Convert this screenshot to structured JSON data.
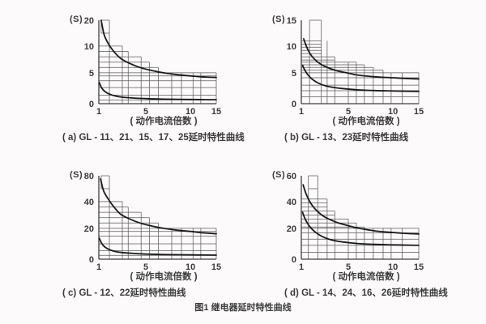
{
  "page": {
    "background": "#fdfafb",
    "figure_caption": "图1  继电器延时特性曲线"
  },
  "style": {
    "grid_color": "#5a5a5a",
    "axis_color": "#3f3f3f",
    "curve_color": "#1a1a1a",
    "text_color": "#3a3a3a"
  },
  "chart_data": [
    {
      "type": "line",
      "title": "( a) GL - 11、21、15、17、25延时特性曲线",
      "xlabel": "动作电流倍数",
      "xlabel_display": "( 动作电流倍数 )",
      "ylabel": "S",
      "ylabel_display": "(S)",
      "x_ticks": [
        1,
        5,
        10,
        15
      ],
      "y_ticks": [
        0,
        5,
        10,
        20
      ],
      "xlim": [
        1,
        15
      ],
      "ylim": [
        0,
        20
      ],
      "series": [
        {
          "name": "upper-limit-curve",
          "points": [
            [
              1.2,
              20
            ],
            [
              1.45,
              14.5
            ],
            [
              1.8,
              11
            ],
            [
              2.2,
              9.2
            ],
            [
              2.8,
              7.8
            ],
            [
              3.5,
              6.9
            ],
            [
              4.5,
              6.0
            ],
            [
              5.5,
              5.5
            ],
            [
              7,
              5.0
            ],
            [
              8.5,
              4.7
            ],
            [
              10,
              4.5
            ],
            [
              12,
              4.35
            ],
            [
              15,
              4.25
            ]
          ]
        },
        {
          "name": "lower-limit-curve",
          "points": [
            [
              1.05,
              3.4
            ],
            [
              1.25,
              2.55
            ],
            [
              1.5,
              2.0
            ],
            [
              1.9,
              1.55
            ],
            [
              2.4,
              1.25
            ],
            [
              3,
              1.05
            ],
            [
              4,
              0.9
            ],
            [
              5,
              0.82
            ],
            [
              7,
              0.74
            ],
            [
              10,
              0.68
            ],
            [
              15,
              0.64
            ]
          ]
        }
      ],
      "step_hlines": [
        [
          20,
          1.2,
          1.9
        ],
        [
          15,
          1.2,
          1.9
        ],
        [
          10,
          1,
          3.0
        ],
        [
          9,
          1,
          3.5
        ],
        [
          8,
          1,
          4.6
        ],
        [
          7,
          1,
          5.4
        ],
        [
          6,
          1,
          6.4
        ],
        [
          5,
          1,
          15
        ],
        [
          4.5,
          1,
          15
        ],
        [
          3.7,
          1,
          15
        ],
        [
          2.6,
          1,
          15
        ],
        [
          1.4,
          1,
          15
        ],
        [
          0.6,
          1,
          15
        ]
      ],
      "step_vlines": [
        [
          1.2,
          15,
          20
        ],
        [
          1.9,
          0,
          20
        ],
        [
          3.0,
          0,
          10
        ],
        [
          3.5,
          0,
          9
        ],
        [
          4.6,
          0,
          8
        ],
        [
          5.4,
          0,
          7
        ],
        [
          6.4,
          0,
          6
        ],
        [
          7.9,
          0,
          5
        ],
        [
          9,
          0,
          5
        ],
        [
          10.5,
          0,
          5
        ],
        [
          12,
          0,
          5
        ],
        [
          15,
          0,
          5
        ]
      ]
    },
    {
      "type": "line",
      "title": "( b) GL - 13、23延时特性曲线",
      "xlabel": "动作电流倍数",
      "xlabel_display": "( 动作电流倍数 )",
      "ylabel": "S",
      "ylabel_display": "(S)",
      "x_ticks": [
        1,
        5,
        10,
        15
      ],
      "y_ticks": [
        0,
        5,
        10,
        15
      ],
      "xlim": [
        1,
        15
      ],
      "ylim": [
        0,
        15
      ],
      "series": [
        {
          "name": "upper-limit-curve",
          "points": [
            [
              1.2,
              11.4
            ],
            [
              1.5,
              9.6
            ],
            [
              1.9,
              8.1
            ],
            [
              2.4,
              7.0
            ],
            [
              3,
              6.2
            ],
            [
              4,
              5.4
            ],
            [
              5,
              4.95
            ],
            [
              6,
              4.65
            ],
            [
              8,
              4.35
            ],
            [
              10,
              4.2
            ],
            [
              12,
              4.1
            ],
            [
              15,
              4.0
            ]
          ]
        },
        {
          "name": "lower-limit-curve",
          "points": [
            [
              1.1,
              6.4
            ],
            [
              1.35,
              5.3
            ],
            [
              1.7,
              4.35
            ],
            [
              2.2,
              3.6
            ],
            [
              2.8,
              3.05
            ],
            [
              3.5,
              2.7
            ],
            [
              4.5,
              2.45
            ],
            [
              6,
              2.25
            ],
            [
              8,
              2.12
            ],
            [
              10,
              2.06
            ],
            [
              15,
              2.0
            ]
          ]
        }
      ],
      "step_hlines": [
        [
          15,
          1.7,
          2.7
        ],
        [
          11,
          1,
          2.7
        ],
        [
          10.4,
          1,
          2.7
        ],
        [
          9.8,
          1,
          2.7
        ],
        [
          9.2,
          1,
          2.7
        ],
        [
          8.6,
          1,
          2.7
        ],
        [
          8,
          1,
          3.85
        ],
        [
          7.4,
          1,
          3.85
        ],
        [
          7,
          1,
          5.9
        ],
        [
          6.5,
          1,
          6.8
        ],
        [
          6,
          1,
          7.8
        ],
        [
          5.5,
          1,
          8.9
        ],
        [
          5,
          1,
          15
        ],
        [
          4.2,
          1,
          15
        ],
        [
          3.0,
          1,
          15
        ],
        [
          2.1,
          1,
          15
        ],
        [
          1.1,
          1,
          15
        ]
      ],
      "step_vlines": [
        [
          1.7,
          0,
          15
        ],
        [
          2.7,
          0,
          15
        ],
        [
          3.2,
          0,
          11
        ],
        [
          3.85,
          0,
          8
        ],
        [
          5.0,
          0,
          7
        ],
        [
          5.9,
          0,
          7
        ],
        [
          6.8,
          0,
          6.5
        ],
        [
          7.8,
          0,
          6
        ],
        [
          8.9,
          0,
          5.5
        ],
        [
          9.8,
          0,
          5
        ],
        [
          11.8,
          0,
          5
        ],
        [
          15,
          0,
          5
        ]
      ]
    },
    {
      "type": "line",
      "title": "( c) GL - 12、22延时特性曲线",
      "xlabel": "动作电流倍数",
      "xlabel_display": "( 动作电流倍数 )",
      "ylabel": "S",
      "ylabel_display": "(S)",
      "x_ticks": [
        1,
        5,
        10,
        15
      ],
      "y_ticks": [
        0,
        20,
        40,
        80
      ],
      "xlim": [
        1,
        15
      ],
      "ylim": [
        0,
        80
      ],
      "series": [
        {
          "name": "upper-limit-curve",
          "points": [
            [
              1.15,
              75
            ],
            [
              1.4,
              57
            ],
            [
              1.8,
              44
            ],
            [
              2.2,
              37
            ],
            [
              2.8,
              31
            ],
            [
              3.5,
              27.5
            ],
            [
              4.5,
              24
            ],
            [
              5.5,
              22
            ],
            [
              7,
              20
            ],
            [
              8.5,
              18.8
            ],
            [
              10,
              18
            ],
            [
              12,
              17.2
            ],
            [
              15,
              16.5
            ]
          ]
        },
        {
          "name": "lower-limit-curve",
          "points": [
            [
              1.05,
              13.5
            ],
            [
              1.25,
              10.2
            ],
            [
              1.5,
              8.0
            ],
            [
              1.9,
              6.2
            ],
            [
              2.4,
              5.0
            ],
            [
              3,
              4.3
            ],
            [
              4,
              3.7
            ],
            [
              5,
              3.35
            ],
            [
              7,
              3.0
            ],
            [
              10,
              2.8
            ],
            [
              15,
              2.65
            ]
          ]
        }
      ],
      "step_hlines": [
        [
          80,
          1.2,
          1.9
        ],
        [
          60,
          1.2,
          1.9
        ],
        [
          40,
          1,
          3.0
        ],
        [
          36,
          1,
          3.5
        ],
        [
          32,
          1,
          4.6
        ],
        [
          28,
          1,
          5.4
        ],
        [
          24,
          1,
          6.4
        ],
        [
          20,
          1,
          15
        ],
        [
          18,
          1,
          15
        ],
        [
          15,
          1,
          15
        ],
        [
          10,
          1,
          15
        ],
        [
          5.5,
          1,
          15
        ],
        [
          2.5,
          1,
          15
        ]
      ],
      "step_vlines": [
        [
          1.2,
          60,
          80
        ],
        [
          1.9,
          0,
          80
        ],
        [
          3.0,
          0,
          40
        ],
        [
          3.5,
          0,
          36
        ],
        [
          4.6,
          0,
          32
        ],
        [
          5.4,
          0,
          28
        ],
        [
          6.4,
          0,
          24
        ],
        [
          7.9,
          0,
          20
        ],
        [
          9,
          0,
          20
        ],
        [
          10.5,
          0,
          20
        ],
        [
          12,
          0,
          20
        ],
        [
          15,
          0,
          20
        ]
      ]
    },
    {
      "type": "line",
      "title": "( d) GL - 14、24、16、26延时特性曲线",
      "xlabel": "动作电流倍数",
      "xlabel_display": "( 动作电流倍数 )",
      "ylabel": "S",
      "ylabel_display": "(S)",
      "x_ticks": [
        1,
        5,
        10,
        15
      ],
      "y_ticks": [
        0,
        20,
        40,
        60
      ],
      "xlim": [
        1,
        15
      ],
      "ylim": [
        0,
        60
      ],
      "series": [
        {
          "name": "upper-limit-curve",
          "points": [
            [
              1.15,
              53
            ],
            [
              1.45,
              45
            ],
            [
              1.9,
              37.5
            ],
            [
              2.4,
              32.5
            ],
            [
              3,
              28.5
            ],
            [
              4,
              24.5
            ],
            [
              5,
              22
            ],
            [
              6,
              20.3
            ],
            [
              8,
              18.3
            ],
            [
              10,
              17.3
            ],
            [
              12,
              16.8
            ],
            [
              15,
              16.3
            ]
          ]
        },
        {
          "name": "lower-limit-curve",
          "points": [
            [
              1.1,
              32
            ],
            [
              1.35,
              26.5
            ],
            [
              1.7,
              21.5
            ],
            [
              2.2,
              17.5
            ],
            [
              2.8,
              14.6
            ],
            [
              3.5,
              12.6
            ],
            [
              4.5,
              11.2
            ],
            [
              6,
              10.2
            ],
            [
              8,
              9.6
            ],
            [
              10,
              9.3
            ],
            [
              15,
              9.0
            ]
          ]
        }
      ],
      "step_hlines": [
        [
          60,
          1.6,
          2.4
        ],
        [
          50,
          1.6,
          2.4
        ],
        [
          42,
          1,
          3.2
        ],
        [
          39,
          1,
          3.2
        ],
        [
          36,
          1,
          3.2
        ],
        [
          33,
          1,
          3.85
        ],
        [
          30,
          1,
          3.85
        ],
        [
          27,
          1,
          5.0
        ],
        [
          24,
          1,
          5.9
        ],
        [
          21,
          1,
          6.8
        ],
        [
          20,
          1,
          15
        ],
        [
          17,
          1,
          15
        ],
        [
          13,
          1,
          15
        ],
        [
          9,
          1,
          15
        ],
        [
          4.5,
          1,
          15
        ]
      ],
      "step_vlines": [
        [
          1.6,
          0,
          60
        ],
        [
          2.4,
          0,
          60
        ],
        [
          3.2,
          0,
          42
        ],
        [
          3.85,
          0,
          33
        ],
        [
          5.0,
          0,
          27
        ],
        [
          5.9,
          0,
          24
        ],
        [
          6.8,
          0,
          21
        ],
        [
          7.8,
          0,
          20
        ],
        [
          8.9,
          0,
          20
        ],
        [
          9.8,
          0,
          20
        ],
        [
          11.8,
          0,
          20
        ],
        [
          15,
          0,
          20
        ]
      ]
    }
  ]
}
